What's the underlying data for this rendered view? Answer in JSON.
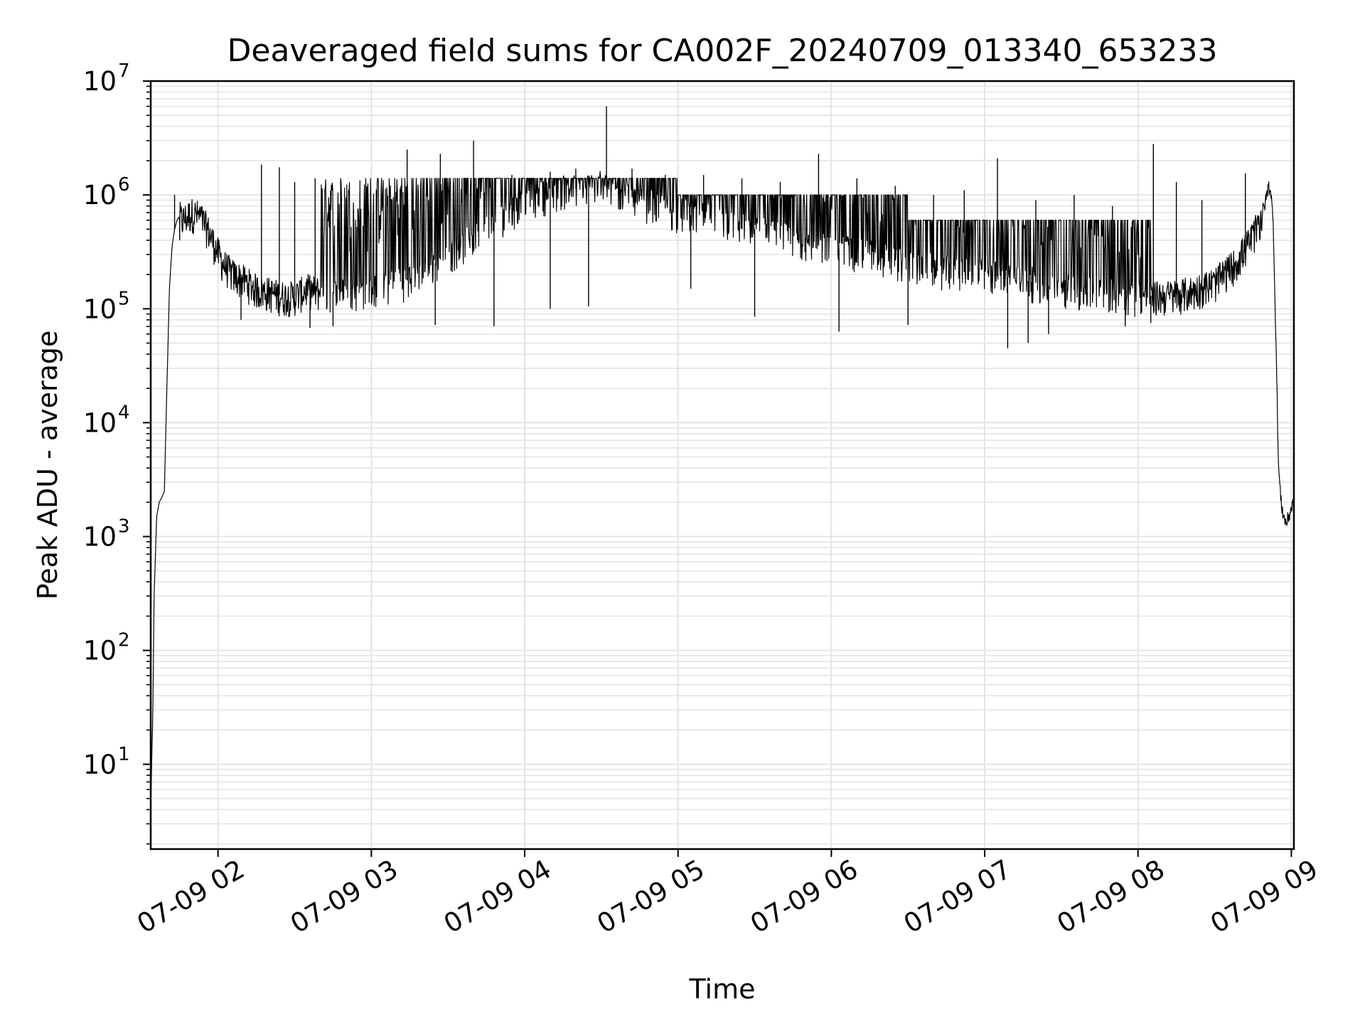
{
  "chart_data": {
    "type": "line",
    "title": "Deaveraged field sums for CA002F_20240709_013340_653233",
    "xlabel": "Time",
    "ylabel": "Peak ADU - average",
    "yscale": "log",
    "ylim": [
      1.8,
      10000000
    ],
    "xlim": [
      "2024-07-09 01:33:40",
      "2024-07-09 09:01:00"
    ],
    "grid": true,
    "line_color": "#000000",
    "grid_color": "#e4e4e4",
    "x_ticks": [
      {
        "value": "2024-07-09 02:00",
        "label": "07-09 02"
      },
      {
        "value": "2024-07-09 03:00",
        "label": "07-09 03"
      },
      {
        "value": "2024-07-09 04:00",
        "label": "07-09 04"
      },
      {
        "value": "2024-07-09 05:00",
        "label": "07-09 05"
      },
      {
        "value": "2024-07-09 06:00",
        "label": "07-09 06"
      },
      {
        "value": "2024-07-09 07:00",
        "label": "07-09 07"
      },
      {
        "value": "2024-07-09 08:00",
        "label": "07-09 08"
      },
      {
        "value": "2024-07-09 09:00",
        "label": "07-09 09"
      }
    ],
    "y_ticks": [
      {
        "value": 10,
        "base": "10",
        "exp": "1"
      },
      {
        "value": 100,
        "base": "10",
        "exp": "2"
      },
      {
        "value": 1000,
        "base": "10",
        "exp": "3"
      },
      {
        "value": 10000,
        "base": "10",
        "exp": "4"
      },
      {
        "value": 100000,
        "base": "10",
        "exp": "5"
      },
      {
        "value": 1000000,
        "base": "10",
        "exp": "6"
      },
      {
        "value": 10000000,
        "base": "10",
        "exp": "7"
      }
    ],
    "series": [
      {
        "x": [
          "2024-07-09 01:33:40",
          "2024-07-09 01:34:30",
          "2024-07-09 01:35:00",
          "2024-07-09 01:36:00",
          "2024-07-09 01:37:00",
          "2024-07-09 01:38:00",
          "2024-07-09 01:39:00",
          "2024-07-09 01:40:00",
          "2024-07-09 01:41:00",
          "2024-07-09 01:42:00",
          "2024-07-09 01:43:00",
          "2024-07-09 01:44:00",
          "2024-07-09 01:45:00",
          "2024-07-09 01:46:00",
          "2024-07-09 01:48:00",
          "2024-07-09 01:50:00",
          "2024-07-09 01:53:00",
          "2024-07-09 01:56:00",
          "2024-07-09 01:59:00",
          "2024-07-09 02:02:00",
          "2024-07-09 02:06:00",
          "2024-07-09 02:10:00",
          "2024-07-09 02:15:00",
          "2024-07-09 02:20:00",
          "2024-07-09 02:25:00",
          "2024-07-09 02:30:00",
          "2024-07-09 02:35:00",
          "2024-07-09 02:40:00",
          "2024-07-09 02:50:00",
          "2024-07-09 03:00:00",
          "2024-07-09 03:15:00",
          "2024-07-09 03:30:00",
          "2024-07-09 03:45:00",
          "2024-07-09 04:00:00",
          "2024-07-09 04:15:00",
          "2024-07-09 04:30:00",
          "2024-07-09 04:45:00",
          "2024-07-09 05:00:00",
          "2024-07-09 05:15:00",
          "2024-07-09 05:30:00",
          "2024-07-09 05:45:00",
          "2024-07-09 06:00:00",
          "2024-07-09 06:15:00",
          "2024-07-09 06:30:00",
          "2024-07-09 06:45:00",
          "2024-07-09 07:00:00",
          "2024-07-09 07:15:00",
          "2024-07-09 07:30:00",
          "2024-07-09 07:45:00",
          "2024-07-09 08:00:00",
          "2024-07-09 08:10:00",
          "2024-07-09 08:20:00",
          "2024-07-09 08:30:00",
          "2024-07-09 08:38:00",
          "2024-07-09 08:44:00",
          "2024-07-09 08:48:00",
          "2024-07-09 08:50:00",
          "2024-07-09 08:51:00",
          "2024-07-09 08:52:00",
          "2024-07-09 08:53:00",
          "2024-07-09 08:54:00",
          "2024-07-09 08:55:00",
          "2024-07-09 08:56:00",
          "2024-07-09 08:57:00",
          "2024-07-09 08:58:00",
          "2024-07-09 08:59:00",
          "2024-07-09 09:00:00",
          "2024-07-09 09:01:00"
        ],
        "y": [
          4,
          30,
          300,
          1500,
          2000,
          2200,
          2500,
          20000,
          150000,
          350000,
          500000,
          600000,
          650000,
          600000,
          650000,
          700000,
          650000,
          500000,
          350000,
          250000,
          200000,
          180000,
          150000,
          140000,
          130000,
          130000,
          150000,
          140000,
          140000,
          150000,
          180000,
          300000,
          500000,
          900000,
          1100000,
          1200000,
          900000,
          700000,
          600000,
          500000,
          400000,
          350000,
          300000,
          250000,
          220000,
          200000,
          180000,
          150000,
          140000,
          130000,
          130000,
          140000,
          170000,
          250000,
          400000,
          600000,
          900000,
          1200000,
          1100000,
          500000,
          50000,
          4000,
          2000,
          1500,
          1300,
          1500,
          1800,
          2000
        ],
        "spikes_high": [
          [
            "2024-07-09 01:43:00",
            1000000
          ],
          [
            "2024-07-09 02:17:00",
            1850000
          ],
          [
            "2024-07-09 02:24:00",
            1750000
          ],
          [
            "2024-07-09 02:30:00",
            1300000
          ],
          [
            "2024-07-09 02:38:00",
            1400000
          ],
          [
            "2024-07-09 02:48:00",
            1400000
          ],
          [
            "2024-07-09 03:07:00",
            1400000
          ],
          [
            "2024-07-09 03:14:00",
            2500000
          ],
          [
            "2024-07-09 03:27:00",
            2300000
          ],
          [
            "2024-07-09 03:40:00",
            3000000
          ],
          [
            "2024-07-09 03:55:00",
            1500000
          ],
          [
            "2024-07-09 04:10:00",
            1600000
          ],
          [
            "2024-07-09 04:20:00",
            1700000
          ],
          [
            "2024-07-09 04:32:00",
            6000000
          ],
          [
            "2024-07-09 04:42:00",
            1700000
          ],
          [
            "2024-07-09 04:55:00",
            1500000
          ],
          [
            "2024-07-09 05:10:00",
            1500000
          ],
          [
            "2024-07-09 05:25:00",
            1400000
          ],
          [
            "2024-07-09 05:40:00",
            1300000
          ],
          [
            "2024-07-09 05:55:00",
            2300000
          ],
          [
            "2024-07-09 06:10:00",
            1400000
          ],
          [
            "2024-07-09 06:25:00",
            1200000
          ],
          [
            "2024-07-09 06:40:00",
            1000000
          ],
          [
            "2024-07-09 06:52:00",
            1100000
          ],
          [
            "2024-07-09 07:05:00",
            2100000
          ],
          [
            "2024-07-09 07:20:00",
            900000
          ],
          [
            "2024-07-09 07:35:00",
            1000000
          ],
          [
            "2024-07-09 07:50:00",
            800000
          ],
          [
            "2024-07-09 08:06:00",
            2800000
          ],
          [
            "2024-07-09 08:15:00",
            1300000
          ],
          [
            "2024-07-09 08:25:00",
            900000
          ],
          [
            "2024-07-09 08:42:00",
            1550000
          ]
        ],
        "spikes_low": [
          [
            "2024-07-09 01:45:00",
            400000
          ],
          [
            "2024-07-09 02:09:00",
            80000
          ],
          [
            "2024-07-09 02:36:00",
            68000
          ],
          [
            "2024-07-09 02:45:00",
            70000
          ],
          [
            "2024-07-09 03:25:00",
            72000
          ],
          [
            "2024-07-09 03:48:00",
            70000
          ],
          [
            "2024-07-09 04:10:00",
            100000
          ],
          [
            "2024-07-09 04:25:00",
            105000
          ],
          [
            "2024-07-09 05:05:00",
            150000
          ],
          [
            "2024-07-09 05:30:00",
            85000
          ],
          [
            "2024-07-09 06:03:00",
            63000
          ],
          [
            "2024-07-09 06:30:00",
            72000
          ],
          [
            "2024-07-09 07:09:00",
            45000
          ],
          [
            "2024-07-09 07:17:00",
            50000
          ],
          [
            "2024-07-09 07:25:00",
            60000
          ],
          [
            "2024-07-09 07:55:00",
            70000
          ],
          [
            "2024-07-09 08:05:00",
            75000
          ]
        ]
      }
    ]
  }
}
